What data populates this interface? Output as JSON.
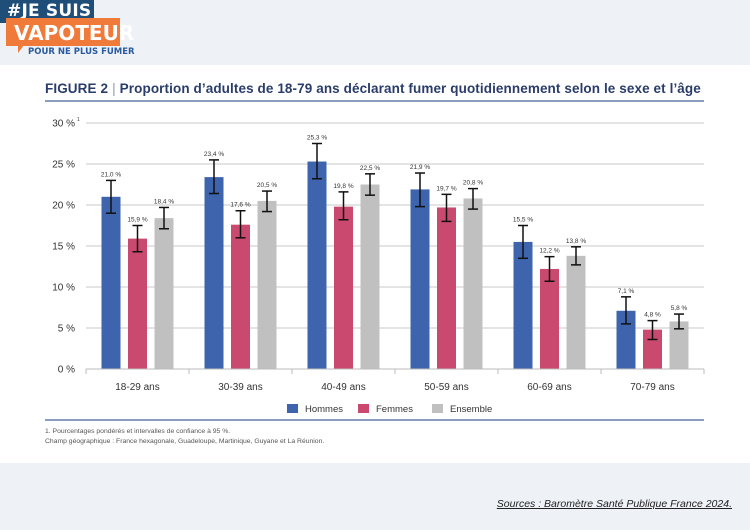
{
  "logo": {
    "line1": "#JE SUIS",
    "line2": "VAPOTEUR",
    "tagline": "POUR NE PLUS FUMER"
  },
  "figure": {
    "label": "FIGURE 2",
    "separator": "|",
    "title": "Proportion d’adultes de 18-79 ans déclarant fumer quotidiennement selon le sexe et l’âge"
  },
  "notes": {
    "line1": "1. Pourcentages pondérés et intervalles de confiance à 95 %.",
    "line2": "Champ géographique : France hexagonale, Guadeloupe, Martinique, Guyane et La Réunion."
  },
  "sources": "Sources : Baromètre Santé Publique France 2024.",
  "chart_data": {
    "type": "bar",
    "title": "Proportion d’adultes de 18-79 ans déclarant fumer quotidiennement selon le sexe et l’âge",
    "xlabel": "",
    "ylabel": "",
    "ylim": [
      0,
      30
    ],
    "yticks": [
      0,
      5,
      10,
      15,
      20,
      25,
      30
    ],
    "ytick_labels": [
      "0 %",
      "5 %",
      "10 %",
      "15 %",
      "20 %",
      "25 %",
      "30 %"
    ],
    "ytick_top_footnote": "1",
    "grid": true,
    "legend_position": "bottom-center",
    "categories": [
      "18-29 ans",
      "30-39 ans",
      "40-49 ans",
      "50-59 ans",
      "60-69 ans",
      "70-79 ans"
    ],
    "series": [
      {
        "name": "Hommes",
        "color": "#3d64ad",
        "values": [
          21.0,
          23.4,
          25.3,
          21.9,
          15.5,
          7.1
        ],
        "labels": [
          "21,0 %",
          "23,4 %",
          "25,3 %",
          "21,9 %",
          "15,5 %",
          "7,1 %"
        ],
        "ci_low": [
          19.0,
          21.4,
          23.2,
          19.8,
          13.5,
          5.5
        ],
        "ci_high": [
          23.0,
          25.5,
          27.5,
          23.9,
          17.5,
          8.8
        ]
      },
      {
        "name": "Femmes",
        "color": "#c94a6e",
        "values": [
          15.9,
          17.6,
          19.8,
          19.7,
          12.2,
          4.8
        ],
        "labels": [
          "15,9 %",
          "17,6 %",
          "19,8 %",
          "19,7 %",
          "12,2 %",
          "4,8 %"
        ],
        "ci_low": [
          14.3,
          16.0,
          18.2,
          18.0,
          10.7,
          3.6
        ],
        "ci_high": [
          17.5,
          19.3,
          21.6,
          21.3,
          13.7,
          5.9
        ]
      },
      {
        "name": "Ensemble",
        "color": "#c0c0c0",
        "values": [
          18.4,
          20.5,
          22.5,
          20.8,
          13.8,
          5.8
        ],
        "labels": [
          "18,4 %",
          "20,5 %",
          "22,5 %",
          "20,8 %",
          "13,8 %",
          "5,8 %"
        ],
        "ci_low": [
          17.1,
          19.2,
          21.2,
          19.5,
          12.7,
          4.9
        ],
        "ci_high": [
          19.7,
          21.7,
          23.8,
          22.0,
          14.9,
          6.7
        ]
      }
    ]
  }
}
